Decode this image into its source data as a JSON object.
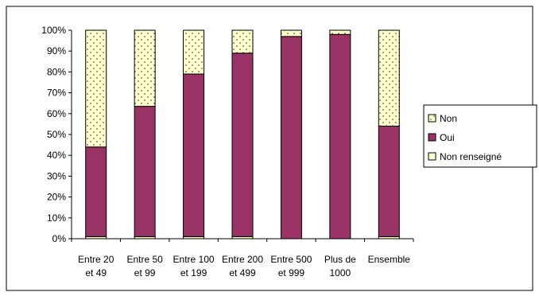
{
  "chart_data": {
    "type": "bar",
    "stacked": true,
    "percent": true,
    "categories": [
      [
        "Entre 20",
        "et 49"
      ],
      [
        "Entre 50",
        "et 99"
      ],
      [
        "Entre 100",
        "et 199"
      ],
      [
        "Entre 200",
        "et 499"
      ],
      [
        "Entre 500",
        "et 999"
      ],
      [
        "Plus de",
        "1000"
      ],
      [
        "Ensemble"
      ]
    ],
    "series": [
      {
        "name": "Non renseigné",
        "values": [
          1,
          1,
          1,
          1,
          0,
          0,
          1
        ],
        "color": "#ffffcc",
        "pattern": "none"
      },
      {
        "name": "Oui",
        "values": [
          43,
          62.5,
          78,
          88,
          97,
          98,
          53
        ],
        "color": "#993366",
        "pattern": "none"
      },
      {
        "name": "Non",
        "values": [
          56,
          36.5,
          21,
          11,
          3,
          2,
          46
        ],
        "color": "#ffffcc",
        "pattern": "dots"
      }
    ],
    "legend_order": [
      "Non",
      "Oui",
      "Non renseigné"
    ],
    "legend_position": "right",
    "ylim": [
      0,
      100
    ],
    "yticks": [
      "0%",
      "10%",
      "20%",
      "30%",
      "40%",
      "50%",
      "60%",
      "70%",
      "80%",
      "90%",
      "100%"
    ],
    "grid": false
  }
}
